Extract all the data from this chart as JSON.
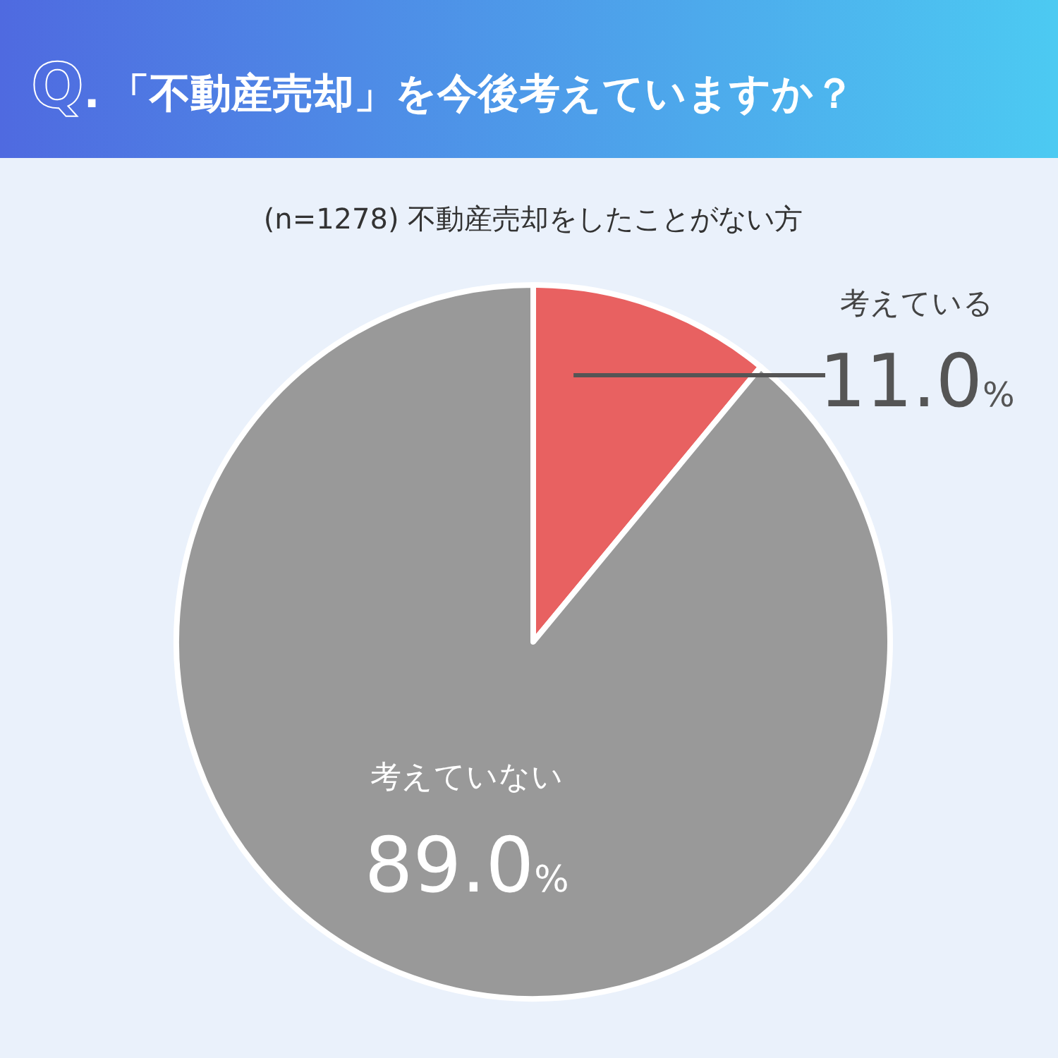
{
  "chart_data": {
    "type": "pie",
    "title": "Q.「不動産売却」を今後考えていますか？",
    "subtitle": "(n=1278) 不動産売却をしたことがない方",
    "categories": [
      "考えている",
      "考えていない"
    ],
    "values": [
      11.0,
      89.0
    ],
    "colors": [
      "#e86161",
      "#999999"
    ],
    "value_labels": [
      "11.0%",
      "89.0%"
    ]
  }
}
